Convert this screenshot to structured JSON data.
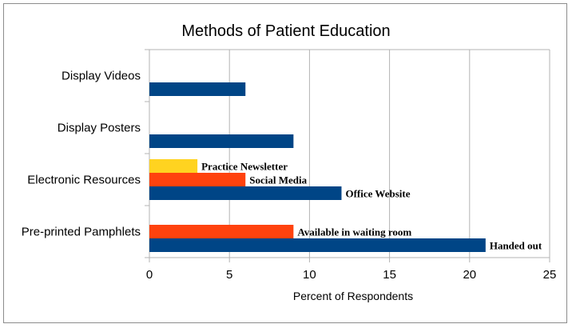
{
  "chart_data": {
    "type": "bar",
    "orientation": "horizontal",
    "title": "Methods of Patient Education",
    "xlabel": "Percent of Respondents",
    "ylabel": "",
    "xlim": [
      0,
      25
    ],
    "xticks": [
      "0",
      "5",
      "10",
      "15",
      "20",
      "25"
    ],
    "grid": true,
    "categories": [
      "Display Videos",
      "Display Posters",
      "Electronic Resources",
      "Pre-printed Pamphlets"
    ],
    "bars": [
      {
        "category": "Display Videos",
        "label": "",
        "value": 6,
        "color": "#004586"
      },
      {
        "category": "Display Posters",
        "label": "",
        "value": 9,
        "color": "#004586"
      },
      {
        "category": "Electronic Resources",
        "label": "Practice Newsletter",
        "value": 3,
        "color": "#FFD320"
      },
      {
        "category": "Electronic Resources",
        "label": "Social Media",
        "value": 6,
        "color": "#FF420E"
      },
      {
        "category": "Electronic Resources",
        "label": "Office Website",
        "value": 12,
        "color": "#004586"
      },
      {
        "category": "Pre-printed Pamphlets",
        "label": "Available in waiting room",
        "value": 9,
        "color": "#FF420E"
      },
      {
        "category": "Pre-printed Pamphlets",
        "label": "Handed out",
        "value": 21,
        "color": "#004586"
      }
    ]
  }
}
